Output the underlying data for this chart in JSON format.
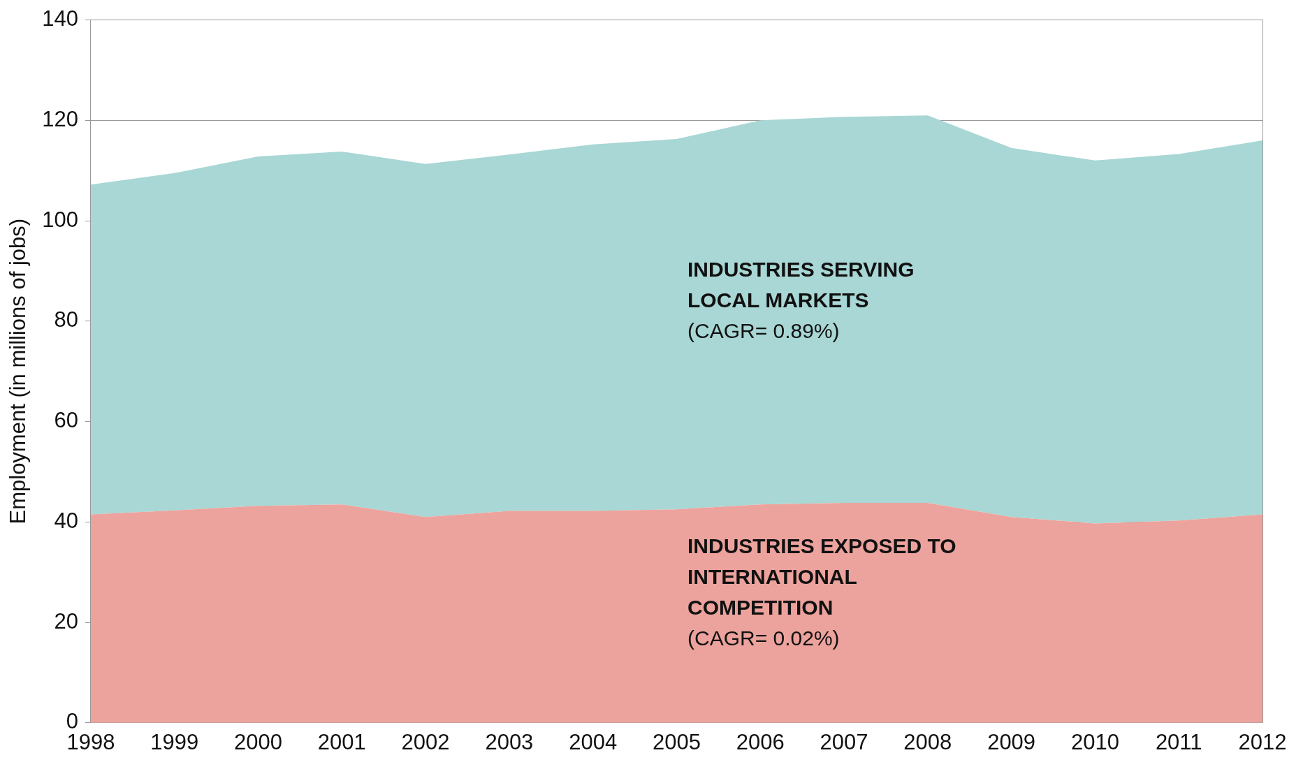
{
  "chart_data": {
    "type": "area",
    "stacked": true,
    "ylabel": "Employment (in millions of jobs)",
    "categories": [
      "1998",
      "1999",
      "2000",
      "2001",
      "2002",
      "2003",
      "2004",
      "2005",
      "2006",
      "2007",
      "2008",
      "2009",
      "2010",
      "2011",
      "2012"
    ],
    "series": [
      {
        "name": "INDUSTRIES EXPOSED TO INTERNATIONAL COMPETITION",
        "color": "#eda39d",
        "values": [
          41.5,
          42.3,
          43.2,
          43.5,
          41.0,
          42.2,
          42.2,
          42.5,
          43.5,
          43.8,
          43.8,
          41.0,
          39.7,
          40.3,
          41.5
        ]
      },
      {
        "name": "INDUSTRIES SERVING LOCAL MARKETS",
        "color": "#a8d7d5",
        "values": [
          65.7,
          67.2,
          69.6,
          70.3,
          70.3,
          71.0,
          73.0,
          73.8,
          76.5,
          76.9,
          77.2,
          73.5,
          72.3,
          73.0,
          74.5
        ]
      }
    ],
    "annotations": [
      "(CAGR= 0.02%)",
      "(CAGR= 0.89%)"
    ],
    "ylim": [
      0,
      140
    ],
    "yticks": [
      0,
      20,
      40,
      60,
      80,
      100,
      120,
      140
    ],
    "grid": "y",
    "legend": false
  }
}
